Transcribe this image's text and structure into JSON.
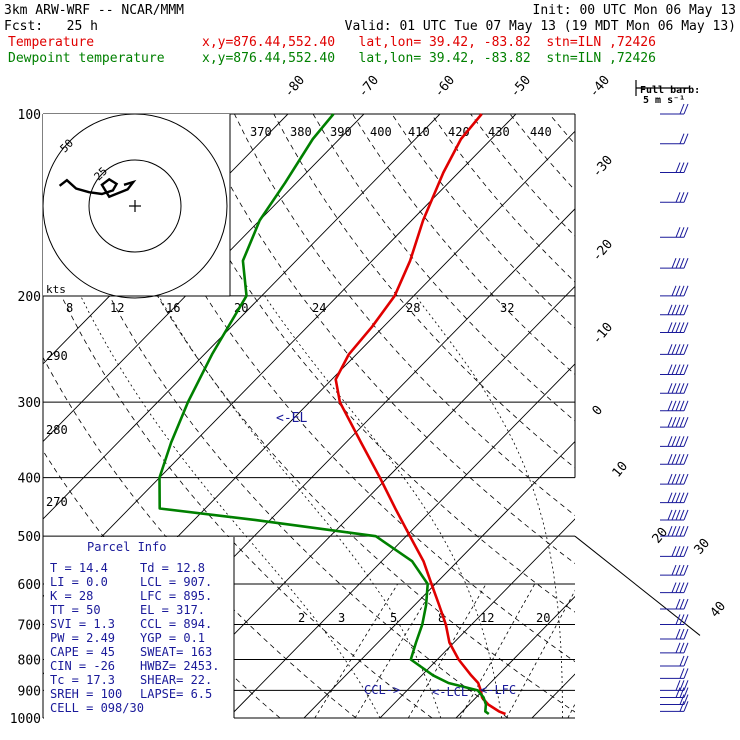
{
  "header": {
    "model": "3km ARW-WRF -- NCAR/MMM",
    "init": "Init: 00 UTC Mon 06 May 13",
    "fcst": "Fcst:   25 h",
    "valid": "Valid: 01 UTC Tue 07 May 13 (19 MDT Mon 06 May 13)",
    "temp_label": "Temperature",
    "dew_label": "Dewpoint temperature",
    "location": "x,y=876.44,552.40   lat,lon= 39.42, -83.82  stn=ILN ,72426"
  },
  "barb_key": {
    "title": "Full barb:",
    "value": "5 m s⁻¹"
  },
  "hodograph": {
    "units": "kts",
    "ring_labels": [
      "25",
      "50"
    ]
  },
  "el_label": "<-EL",
  "ccl_label": "CCL->",
  "lcl_label": "<-LCL",
  "lfc_label": "<-LFC",
  "parcel_info": {
    "title": "Parcel Info",
    "rows": [
      [
        "T  =    14.4",
        "Td =  12.8"
      ],
      [
        "LI =     0.0",
        "LCL =  907."
      ],
      [
        "K  =      28",
        "LFC =  895."
      ],
      [
        "TT =      50",
        "EL  =  317."
      ],
      [
        "SVI =    1.3",
        "CCL =  894."
      ],
      [
        "PW =    2.49",
        "YGP =   0.1"
      ],
      [
        "CAPE =    45",
        "SWEAT=  163"
      ],
      [
        "CIN =    -26",
        "HWBZ= 2453."
      ],
      [
        "Tc =    17.3",
        "SHEAR=  22."
      ],
      [
        "SREH =   100",
        "LAPSE=   6.5"
      ],
      [
        "CELL = 098/30",
        ""
      ]
    ]
  },
  "colors": {
    "temperature": "#e00000",
    "dewpoint": "#008000",
    "annotation": "#1a1a9a",
    "isotherm": "#000000"
  },
  "chart_data": {
    "type": "line",
    "title": "",
    "xlabel": "",
    "ylabel": "",
    "y_scale": "log-pressure",
    "ylim": [
      1000,
      100
    ],
    "pressure_ticks": [
      100,
      200,
      300,
      400,
      500,
      600,
      700,
      800,
      900,
      1000
    ],
    "isotherm_labels": [
      -80,
      -70,
      -60,
      -50,
      -40,
      -30,
      -20,
      -10,
      0,
      10,
      20,
      30,
      40
    ],
    "theta_labels": [
      270,
      280,
      290,
      370,
      380,
      390,
      400,
      410,
      420,
      430,
      440
    ],
    "mixing_ratio_labels": [
      2,
      3,
      5,
      8,
      12,
      20
    ],
    "top_axis_labels": [
      8,
      12,
      16,
      20,
      24,
      28,
      32
    ],
    "series": [
      {
        "name": "Temperature",
        "color": "#e00000",
        "points": [
          [
            985,
            16.0
          ],
          [
            975,
            14.8
          ],
          [
            950,
            12.5
          ],
          [
            925,
            10.8
          ],
          [
            900,
            9.7
          ],
          [
            875,
            8.4
          ],
          [
            850,
            6.5
          ],
          [
            800,
            2.8
          ],
          [
            750,
            -0.6
          ],
          [
            700,
            -3.4
          ],
          [
            650,
            -6.8
          ],
          [
            600,
            -10.5
          ],
          [
            550,
            -14.5
          ],
          [
            500,
            -19.5
          ],
          [
            450,
            -25.0
          ],
          [
            400,
            -31.0
          ],
          [
            350,
            -38.0
          ],
          [
            300,
            -46.0
          ],
          [
            275,
            -49.5
          ],
          [
            250,
            -51.0
          ],
          [
            225,
            -51.5
          ],
          [
            200,
            -52.5
          ],
          [
            175,
            -55.0
          ],
          [
            150,
            -58.5
          ],
          [
            125,
            -62.0
          ],
          [
            110,
            -64.0
          ],
          [
            100,
            -64.5
          ]
        ]
      },
      {
        "name": "Dewpoint temperature",
        "color": "#008000",
        "points": [
          [
            985,
            13.8
          ],
          [
            975,
            13.0
          ],
          [
            950,
            12.2
          ],
          [
            925,
            11.0
          ],
          [
            900,
            9.3
          ],
          [
            875,
            4.5
          ],
          [
            850,
            1.5
          ],
          [
            800,
            -3.5
          ],
          [
            750,
            -5.0
          ],
          [
            700,
            -6.5
          ],
          [
            650,
            -8.5
          ],
          [
            600,
            -11.0
          ],
          [
            550,
            -16.0
          ],
          [
            500,
            -24.0
          ],
          [
            470,
            -42.0
          ],
          [
            450,
            -56.0
          ],
          [
            400,
            -60.0
          ],
          [
            350,
            -63.0
          ],
          [
            300,
            -66.0
          ],
          [
            250,
            -69.0
          ],
          [
            200,
            -72.0
          ],
          [
            175,
            -77.0
          ],
          [
            150,
            -80.0
          ],
          [
            130,
            -81.5
          ],
          [
            110,
            -83.5
          ],
          [
            100,
            -84.0
          ]
        ]
      }
    ],
    "hodograph": [
      [
        -41.0,
        11.0
      ],
      [
        -37.0,
        14.0
      ],
      [
        -32.0,
        9.5
      ],
      [
        -25.0,
        7.5
      ],
      [
        -18.0,
        6.5
      ],
      [
        -12.0,
        8.5
      ],
      [
        -10.0,
        12.0
      ],
      [
        -14.0,
        14.5
      ],
      [
        -18.0,
        11.5
      ],
      [
        -14.0,
        5.0
      ],
      [
        -4.0,
        9.0
      ],
      [
        -1.0,
        13.0
      ],
      [
        -6.0,
        11.5
      ]
    ],
    "wind_barbs": [
      {
        "p": 100,
        "speed": 10,
        "dir": 270
      },
      {
        "p": 112,
        "speed": 10,
        "dir": 265
      },
      {
        "p": 125,
        "speed": 15,
        "dir": 260
      },
      {
        "p": 140,
        "speed": 15,
        "dir": 255
      },
      {
        "p": 160,
        "speed": 15,
        "dir": 255
      },
      {
        "p": 180,
        "speed": 20,
        "dir": 250
      },
      {
        "p": 200,
        "speed": 20,
        "dir": 250
      },
      {
        "p": 215,
        "speed": 25,
        "dir": 250
      },
      {
        "p": 230,
        "speed": 25,
        "dir": 250
      },
      {
        "p": 250,
        "speed": 25,
        "dir": 250
      },
      {
        "p": 270,
        "speed": 25,
        "dir": 250
      },
      {
        "p": 290,
        "speed": 25,
        "dir": 255
      },
      {
        "p": 310,
        "speed": 25,
        "dir": 255
      },
      {
        "p": 330,
        "speed": 25,
        "dir": 255
      },
      {
        "p": 355,
        "speed": 25,
        "dir": 255
      },
      {
        "p": 380,
        "speed": 25,
        "dir": 255
      },
      {
        "p": 410,
        "speed": 25,
        "dir": 250
      },
      {
        "p": 440,
        "speed": 25,
        "dir": 250
      },
      {
        "p": 470,
        "speed": 25,
        "dir": 245
      },
      {
        "p": 500,
        "speed": 25,
        "dir": 245
      },
      {
        "p": 540,
        "speed": 20,
        "dir": 240
      },
      {
        "p": 580,
        "speed": 20,
        "dir": 240
      },
      {
        "p": 620,
        "speed": 20,
        "dir": 235
      },
      {
        "p": 660,
        "speed": 15,
        "dir": 230
      },
      {
        "p": 700,
        "speed": 15,
        "dir": 225
      },
      {
        "p": 740,
        "speed": 15,
        "dir": 225
      },
      {
        "p": 780,
        "speed": 15,
        "dir": 220
      },
      {
        "p": 820,
        "speed": 10,
        "dir": 215
      },
      {
        "p": 860,
        "speed": 10,
        "dir": 210
      },
      {
        "p": 900,
        "speed": 15,
        "dir": 205
      },
      {
        "p": 925,
        "speed": 15,
        "dir": 200
      },
      {
        "p": 950,
        "speed": 10,
        "dir": 190
      },
      {
        "p": 975,
        "speed": 10,
        "dir": 180
      }
    ]
  }
}
